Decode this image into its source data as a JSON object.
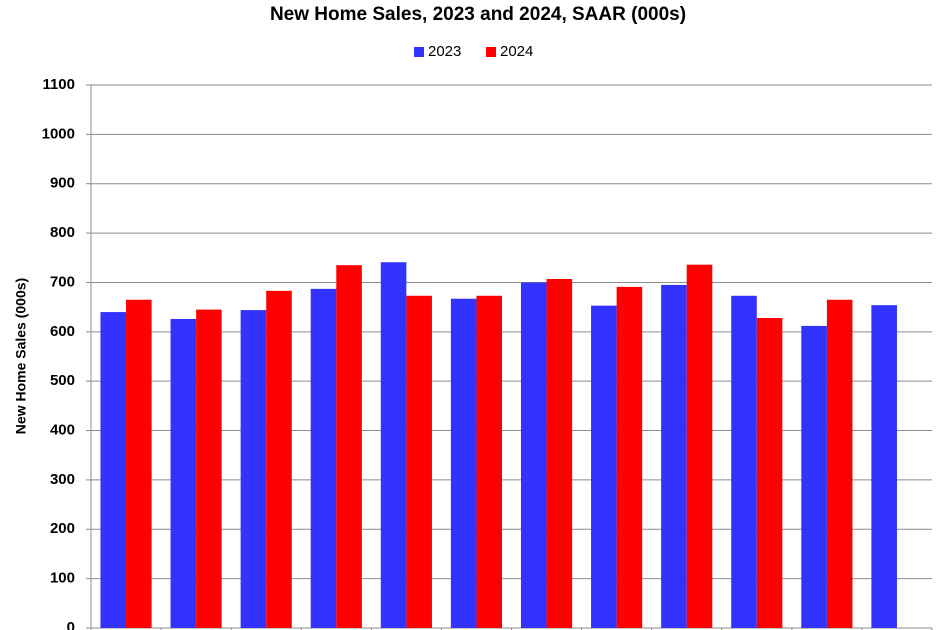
{
  "chart_data": {
    "type": "bar",
    "title": "New Home Sales,  2023 and 2024, SAAR (000s)",
    "y_label": "New Home Sales (000s)",
    "categories": [
      null,
      null,
      null,
      null,
      null,
      null,
      null,
      null,
      null,
      null,
      null,
      null
    ],
    "series": [
      {
        "name": "2023",
        "color": "#3333ff",
        "values": [
          640,
          626,
          644,
          687,
          741,
          667,
          700,
          653,
          695,
          673,
          612,
          654
        ]
      },
      {
        "name": "2024",
        "color": "#ff0000",
        "values": [
          665,
          645,
          683,
          735,
          673,
          673,
          707,
          691,
          736,
          628,
          665,
          null
        ]
      }
    ],
    "ylim": [
      0,
      1100
    ],
    "yticks": [
      0,
      100,
      200,
      300,
      400,
      500,
      600,
      700,
      800,
      900,
      1000,
      1100
    ],
    "grid": true,
    "legend": "top"
  }
}
